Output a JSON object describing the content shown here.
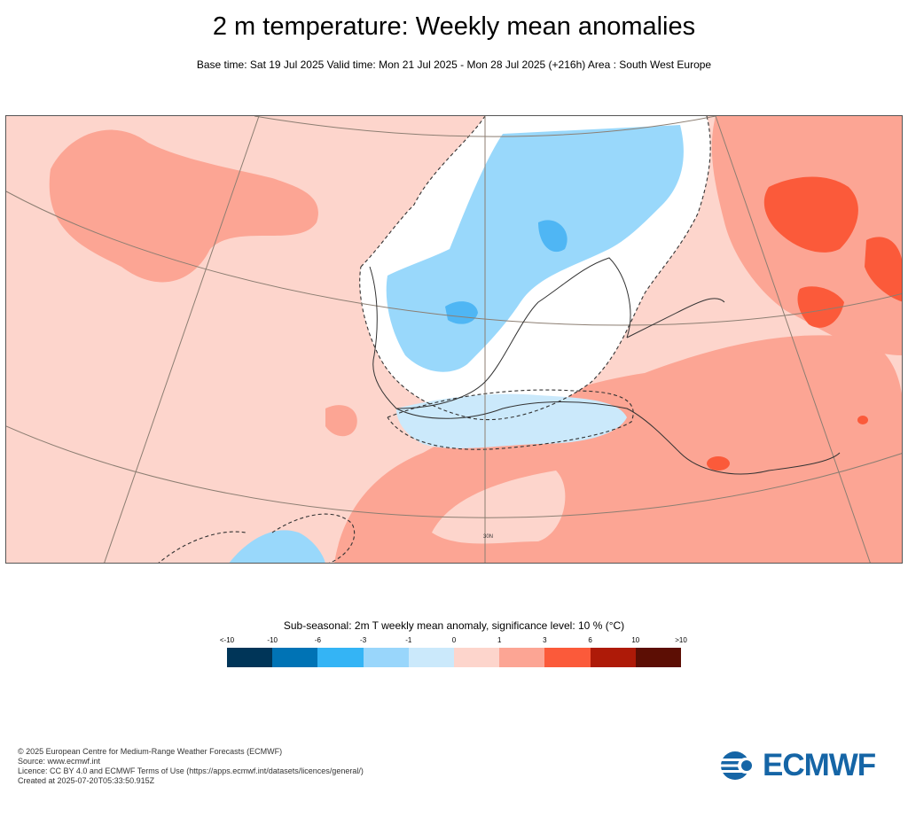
{
  "title": "2 m temperature: Weekly mean anomalies",
  "subtitle": "Base time: Sat 19 Jul 2025 Valid time: Mon 21 Jul 2025 - Mon 28 Jul 2025 (+216h) Area : South West Europe",
  "map": {
    "gridline_label": "30N",
    "colors": {
      "ocean_warm": "#fdd5cc",
      "warm_mid": "#fca594",
      "hot": "#fb5a3a",
      "cool_light": "#cbe9fb",
      "cool_mid": "#99d8fb",
      "cool": "#4fb6f4",
      "neutral": "#ffffff"
    }
  },
  "legend": {
    "title": "Sub-seasonal: 2m T weekly mean anomaly, significance level: 10 % (°C)",
    "tick_labels": [
      "<-10",
      "-10",
      "-6",
      "-3",
      "-1",
      "0",
      "1",
      "3",
      "6",
      "10",
      ">10"
    ],
    "colors": [
      "#003558",
      "#0073b5",
      "#34b4f5",
      "#99d6fb",
      "#cbe9fb",
      "#fdd5cc",
      "#fca594",
      "#fb5a3a",
      "#ae1a08",
      "#5c0e04"
    ]
  },
  "footer": {
    "line1": "© 2025 European Centre for Medium-Range Weather Forecasts (ECMWF)",
    "line2": "Source: www.ecmwf.int",
    "line3": "Licence: CC BY 4.0 and ECMWF Terms of Use (https://apps.ecmwf.int/datasets/licences/general/)",
    "line4": "Created at 2025-07-20T05:33:50.915Z"
  },
  "logo": {
    "text": "ECMWF",
    "color": "#1565a6"
  }
}
